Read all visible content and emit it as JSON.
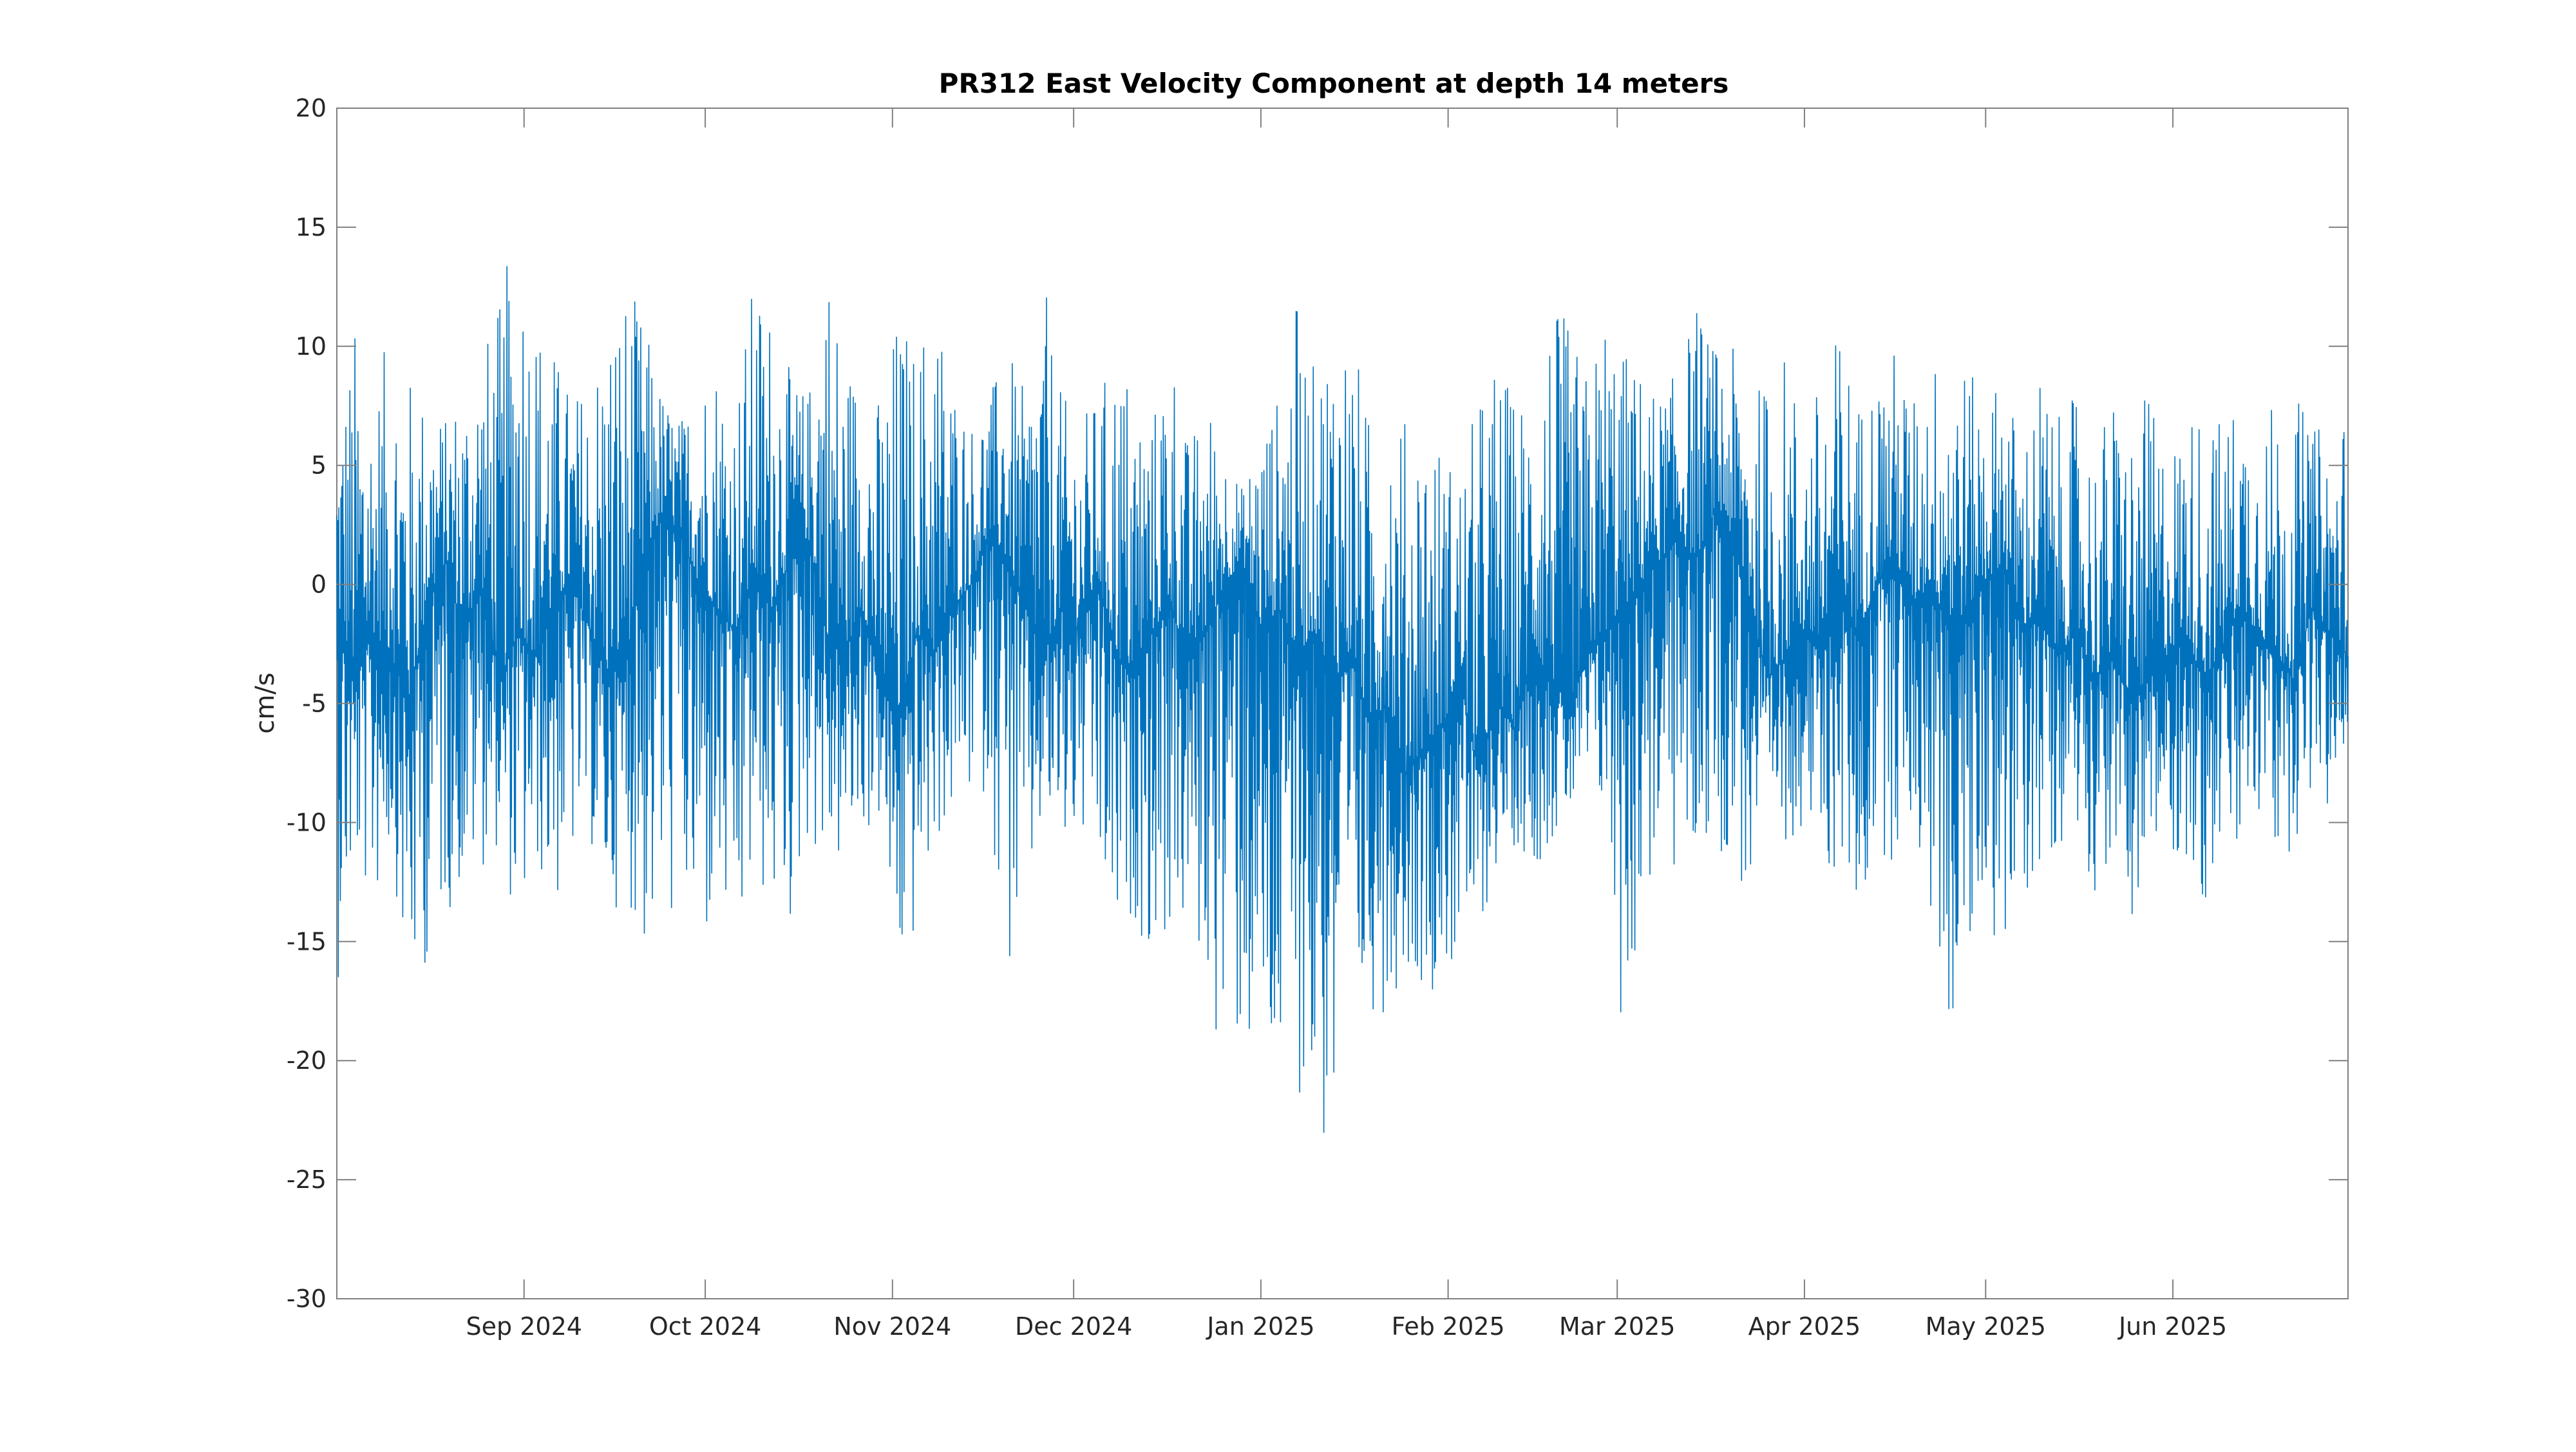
{
  "chart_data": {
    "type": "line",
    "title": "PR312 East Velocity Component at depth 14 meters",
    "xlabel": "",
    "ylabel": "cm/s",
    "x_axis_type": "date",
    "xlim": [
      "2024-08-01",
      "2025-06-30"
    ],
    "ylim": [
      -30,
      20
    ],
    "grid": false,
    "x_ticks": [
      {
        "date": "2024-09-01",
        "label": "Sep 2024"
      },
      {
        "date": "2024-10-01",
        "label": "Oct 2024"
      },
      {
        "date": "2024-11-01",
        "label": "Nov 2024"
      },
      {
        "date": "2024-12-01",
        "label": "Dec 2024"
      },
      {
        "date": "2025-01-01",
        "label": "Jan 2025"
      },
      {
        "date": "2025-02-01",
        "label": "Feb 2025"
      },
      {
        "date": "2025-03-01",
        "label": "Mar 2025"
      },
      {
        "date": "2025-04-01",
        "label": "Apr 2025"
      },
      {
        "date": "2025-05-01",
        "label": "May 2025"
      },
      {
        "date": "2025-06-01",
        "label": "Jun 2025"
      }
    ],
    "y_ticks": [
      -30,
      -25,
      -20,
      -15,
      -10,
      -5,
      0,
      5,
      10,
      15,
      20
    ],
    "series": [
      {
        "color": "#0072bd",
        "x": [
          "2024-08-01",
          "2024-08-04",
          "2024-08-07",
          "2024-08-10",
          "2024-08-13",
          "2024-08-16",
          "2024-08-19",
          "2024-08-22",
          "2024-08-25",
          "2024-08-28",
          "2024-08-31",
          "2024-09-03",
          "2024-09-06",
          "2024-09-09",
          "2024-09-12",
          "2024-09-15",
          "2024-09-18",
          "2024-09-21",
          "2024-09-24",
          "2024-09-27",
          "2024-09-30",
          "2024-10-03",
          "2024-10-06",
          "2024-10-09",
          "2024-10-12",
          "2024-10-15",
          "2024-10-18",
          "2024-10-21",
          "2024-10-24",
          "2024-10-27",
          "2024-10-30",
          "2024-11-02",
          "2024-11-05",
          "2024-11-08",
          "2024-11-11",
          "2024-11-14",
          "2024-11-17",
          "2024-11-20",
          "2024-11-23",
          "2024-11-26",
          "2024-11-29",
          "2024-12-02",
          "2024-12-05",
          "2024-12-08",
          "2024-12-11",
          "2024-12-14",
          "2024-12-17",
          "2024-12-20",
          "2024-12-23",
          "2024-12-26",
          "2024-12-29",
          "2025-01-01",
          "2025-01-04",
          "2025-01-07",
          "2025-01-10",
          "2025-01-13",
          "2025-01-16",
          "2025-01-19",
          "2025-01-22",
          "2025-01-25",
          "2025-01-28",
          "2025-01-31",
          "2025-02-03",
          "2025-02-06",
          "2025-02-09",
          "2025-02-12",
          "2025-02-15",
          "2025-02-18",
          "2025-02-21",
          "2025-02-24",
          "2025-02-27",
          "2025-03-02",
          "2025-03-05",
          "2025-03-08",
          "2025-03-11",
          "2025-03-14",
          "2025-03-17",
          "2025-03-20",
          "2025-03-23",
          "2025-03-26",
          "2025-03-29",
          "2025-04-01",
          "2025-04-04",
          "2025-04-07",
          "2025-04-10",
          "2025-04-13",
          "2025-04-16",
          "2025-04-19",
          "2025-04-22",
          "2025-04-25",
          "2025-04-28",
          "2025-05-01",
          "2025-05-04",
          "2025-05-07",
          "2025-05-10",
          "2025-05-13",
          "2025-05-16",
          "2025-05-19",
          "2025-05-22",
          "2025-05-25",
          "2025-05-28",
          "2025-05-31",
          "2025-06-03",
          "2025-06-06",
          "2025-06-09",
          "2025-06-12",
          "2025-06-15",
          "2025-06-18",
          "2025-06-21",
          "2025-06-24",
          "2025-06-27",
          "2025-06-30"
        ],
        "y": [
          -1,
          -4,
          -2,
          -3,
          -5,
          -1,
          1,
          -2,
          0,
          -4,
          -2,
          -3,
          -1,
          0,
          -2,
          -4,
          -3,
          1,
          3,
          2,
          0,
          -1,
          -2,
          0,
          -1,
          1,
          2,
          -2,
          -3,
          -1,
          -4,
          -6,
          -2,
          -3,
          -1,
          0,
          2,
          1,
          -1,
          -3,
          -1,
          -2,
          0,
          -3,
          -4,
          -2,
          -1,
          -3,
          -2,
          0,
          1,
          -2,
          -1,
          -3,
          -2,
          -4,
          -3,
          -6,
          -5,
          -8,
          -7,
          -6,
          -4,
          -8,
          -5,
          -6,
          -3,
          -4,
          -5,
          -3,
          -2,
          -1,
          0,
          1,
          2,
          1,
          3,
          2,
          -1,
          -4,
          -3,
          -2,
          -3,
          -1,
          -2,
          0,
          1,
          -1,
          0,
          -2,
          -1,
          0,
          1,
          -2,
          -1,
          -3,
          -2,
          -4,
          -3,
          -5,
          -4,
          -3,
          -2,
          -4,
          -3,
          -1,
          -2,
          -3,
          -4,
          -1,
          -2,
          -3
        ],
        "y_max": [
          7,
          11,
          8,
          11,
          9,
          8,
          7,
          9,
          10,
          12,
          16,
          12,
          10,
          8,
          9,
          12,
          13,
          11,
          8,
          7,
          9,
          10,
          8,
          13,
          12,
          9,
          8,
          15,
          10,
          9,
          8,
          12,
          10,
          13,
          9,
          7,
          8,
          10,
          8,
          13,
          8,
          7,
          8,
          10,
          9,
          7,
          11,
          6,
          8,
          6,
          4,
          7,
          8,
          12,
          9,
          12,
          11,
          7,
          9,
          7,
          8,
          6,
          5,
          8,
          10,
          8,
          9,
          12,
          11,
          9,
          12,
          10,
          9,
          8,
          9,
          12,
          10,
          10,
          8,
          9,
          10,
          7,
          9,
          11,
          8,
          9,
          10,
          8,
          9,
          12,
          9,
          8,
          9,
          6,
          9,
          7,
          8,
          6,
          8,
          7,
          8,
          6,
          7,
          8,
          7,
          8,
          7,
          8,
          8,
          7,
          6,
          8
        ],
        "y_min": [
          -17,
          -12,
          -14,
          -11,
          -18,
          -16,
          -14,
          -13,
          -12,
          -11,
          -15,
          -12,
          -14,
          -12,
          -11,
          -14,
          -13,
          -16,
          -15,
          -14,
          -17,
          -14,
          -17,
          -13,
          -14,
          -15,
          -11,
          -12,
          -12,
          -11,
          -10,
          -17,
          -15,
          -11,
          -10,
          -9,
          -9,
          -17,
          -15,
          -10,
          -12,
          -11,
          -13,
          -16,
          -14,
          -16,
          -15,
          -15,
          -17,
          -21,
          -20,
          -22,
          -23,
          -21,
          -24,
          -25,
          -20,
          -18,
          -18,
          -16,
          -17,
          -17,
          -16,
          -15,
          -12,
          -11,
          -12,
          -11,
          -10,
          -9,
          -10,
          -20,
          -14,
          -12,
          -13,
          -12,
          -11,
          -12,
          -14,
          -11,
          -11,
          -10,
          -13,
          -12,
          -15,
          -11,
          -12,
          -10,
          -15,
          -19,
          -18,
          -13,
          -17,
          -14,
          -12,
          -11,
          -10,
          -13,
          -12,
          -14,
          -13,
          -11,
          -12,
          -14,
          -11,
          -13,
          -10,
          -12,
          -11,
          -9,
          -10,
          -8
        ]
      }
    ]
  }
}
